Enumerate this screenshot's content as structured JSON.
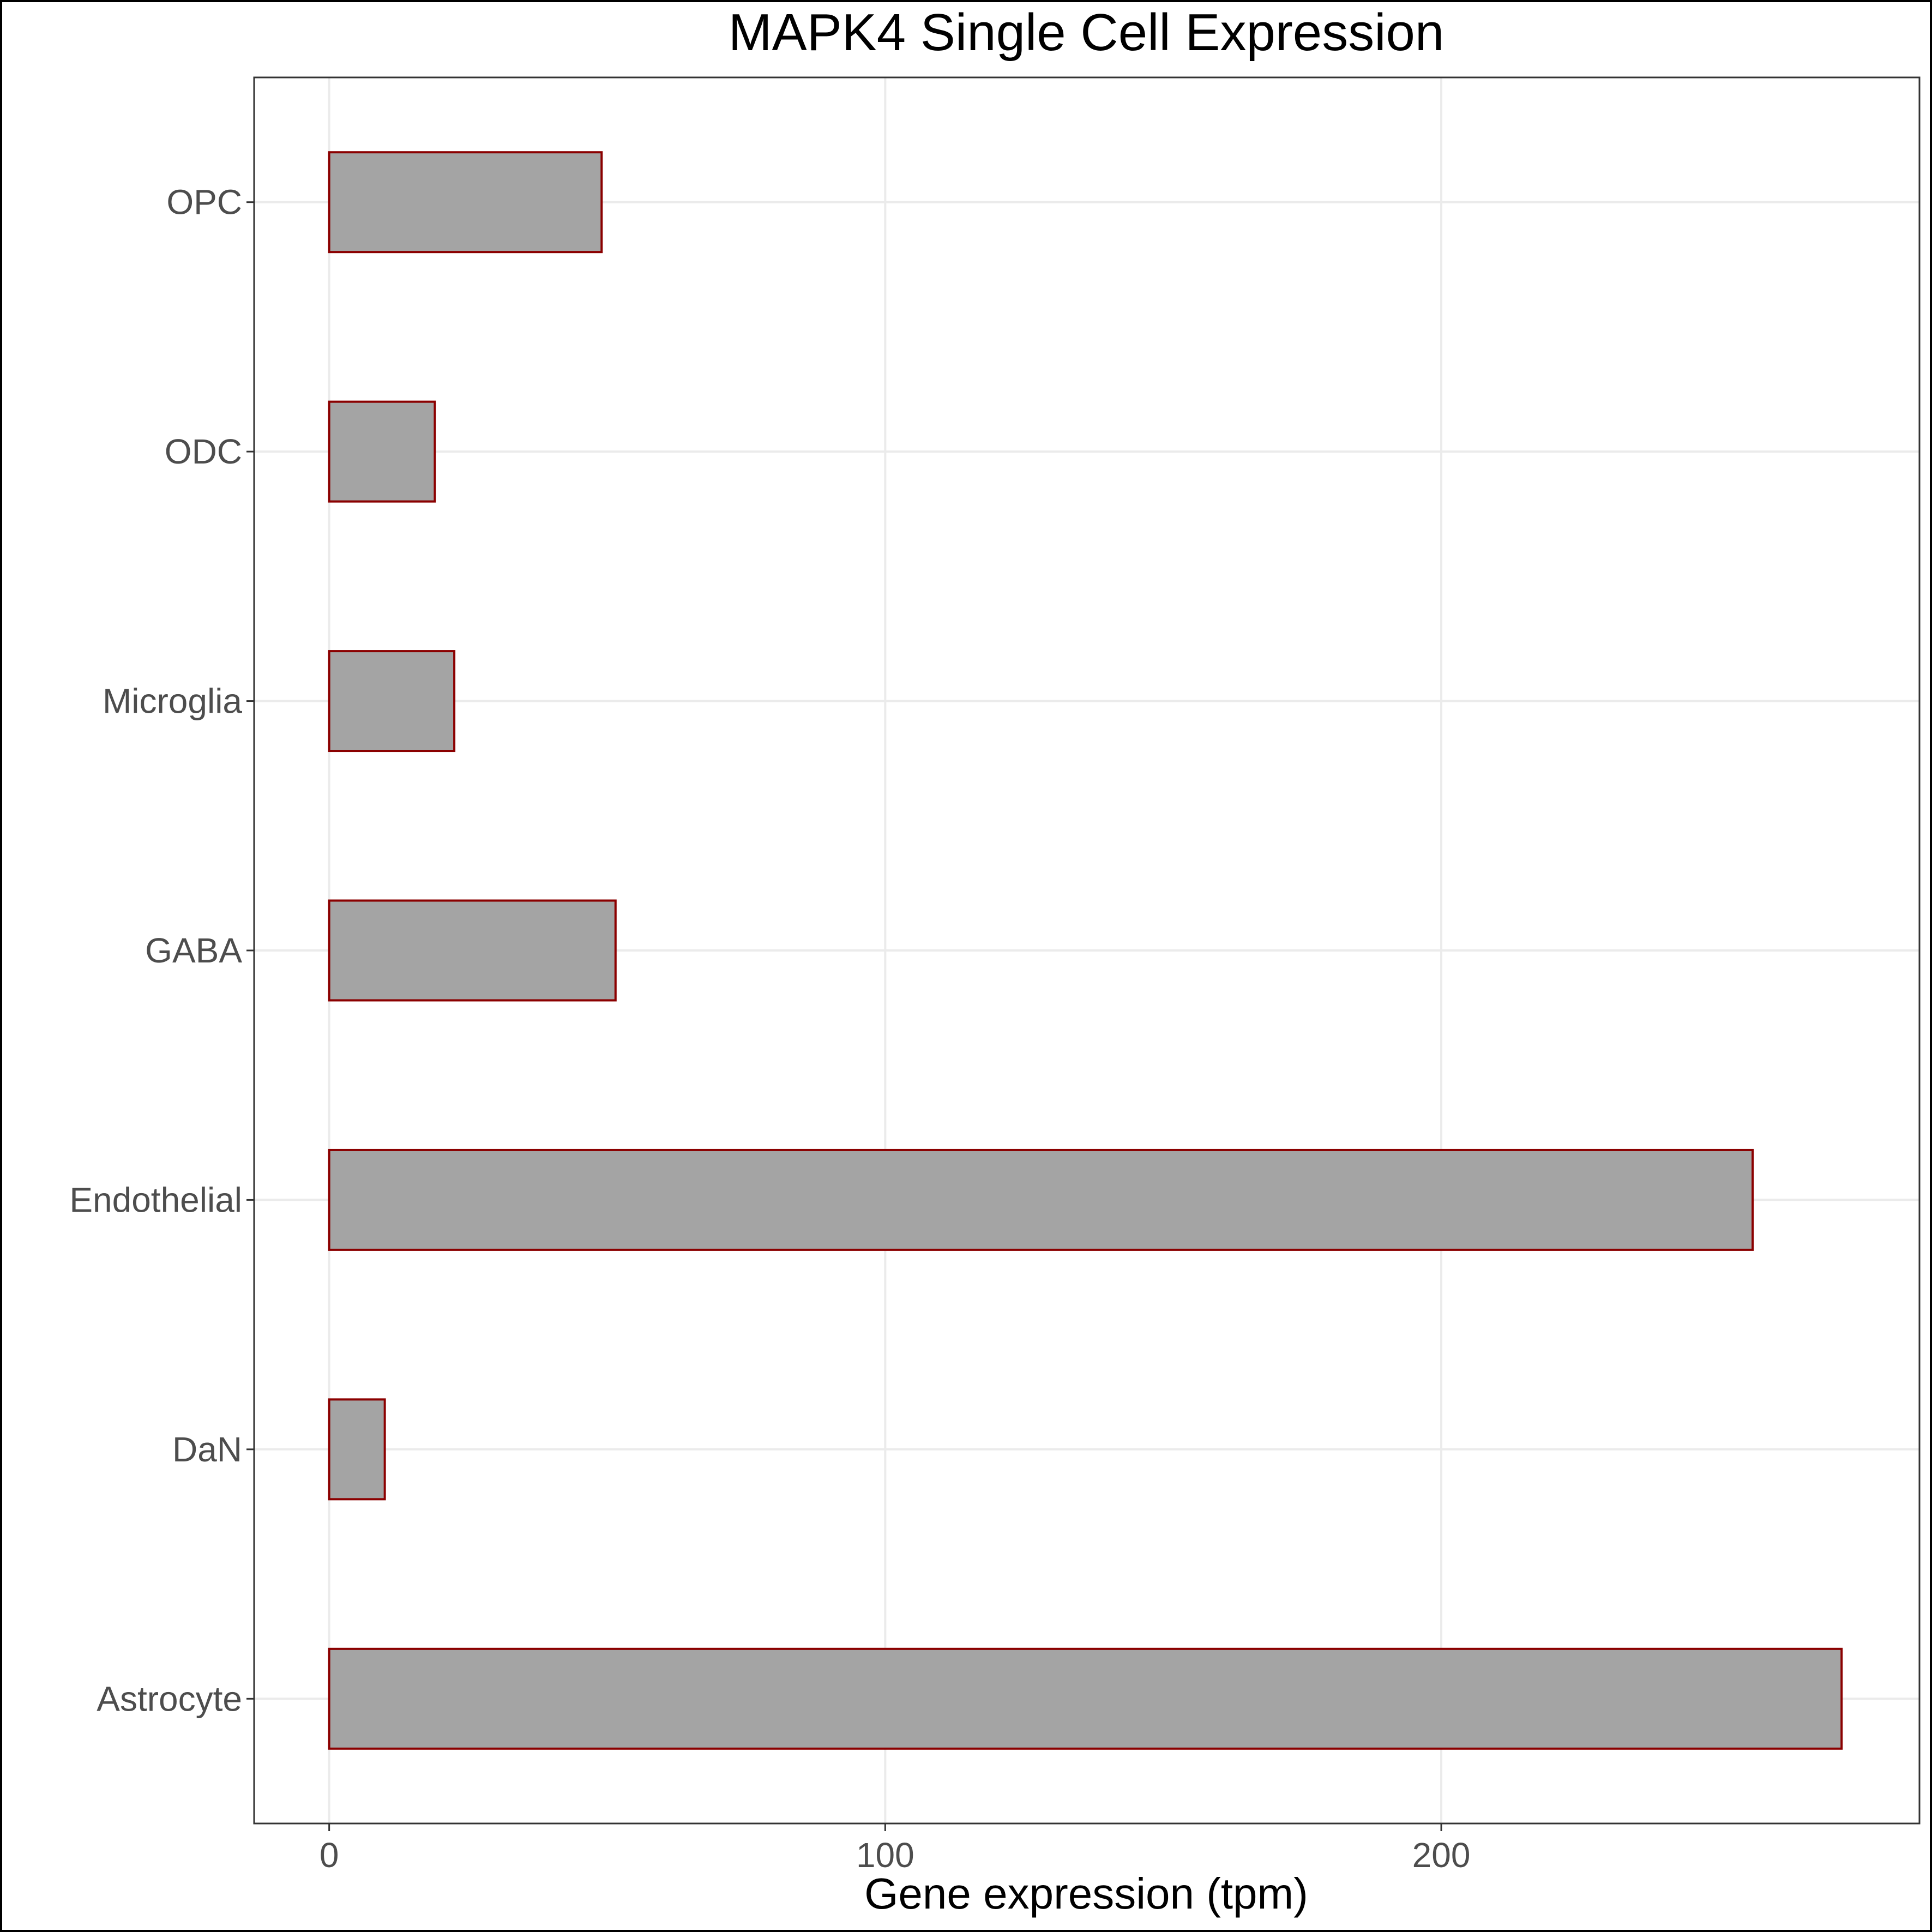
{
  "chart_data": {
    "type": "bar",
    "orientation": "horizontal",
    "title": "MAPK4 Single Cell Expression",
    "xlabel": "Gene expression (tpm)",
    "ylabel": "",
    "categories": [
      "Astrocyte",
      "DaN",
      "Endothelial",
      "GABA",
      "Microglia",
      "ODC",
      "OPC"
    ],
    "values": [
      272,
      10,
      256,
      51.5,
      22.5,
      19,
      49
    ],
    "xlim": [
      -13.5,
      286
    ],
    "xticks": [
      0,
      100,
      200
    ],
    "grid": true,
    "legend": "none",
    "bar_fill": "#a4a4a4",
    "bar_stroke": "#8b0000"
  }
}
